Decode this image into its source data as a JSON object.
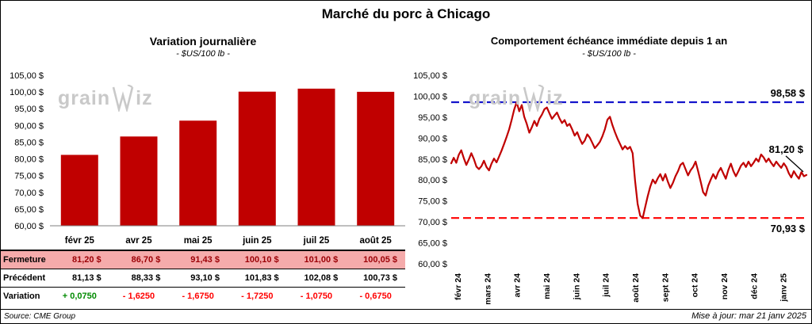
{
  "page": {
    "title": "Marché du porc à Chicago",
    "source": "Source: CME Group",
    "updated": "Mise à jour: mar 21 janv 2025",
    "watermark": {
      "part1": "grain",
      "part2": "iz"
    }
  },
  "colors": {
    "bar": "#c00000",
    "line": "#c00000",
    "high": "#1414cc",
    "low": "#ff0000",
    "close_bg": "#f5abab",
    "close_text": "#9c0006",
    "positive": "#008a00",
    "negative": "#ff0000"
  },
  "table": {
    "col_headers": [
      "févr 25",
      "avr 25",
      "mai 25",
      "juin 25",
      "juil 25",
      "août 25"
    ],
    "rows": [
      {
        "label": "Fermeture",
        "style": "close",
        "values": [
          "81,20 $",
          "86,70 $",
          "91,43 $",
          "100,10 $",
          "101,00 $",
          "100,05 $"
        ]
      },
      {
        "label": "Précédent",
        "style": "prev",
        "values": [
          "81,13 $",
          "88,33 $",
          "93,10 $",
          "101,83 $",
          "102,08 $",
          "100,73 $"
        ]
      },
      {
        "label": "Variation",
        "style": "var",
        "values": [
          "+ 0,0750",
          "- 1,6250",
          "- 1,6750",
          "- 1,7250",
          "- 1,0750",
          "- 0,6750"
        ],
        "value_colors": [
          "positive",
          "negative",
          "negative",
          "negative",
          "negative",
          "negative"
        ]
      }
    ]
  },
  "chart_data": [
    {
      "type": "bar",
      "title": "Variation journalière",
      "subtitle": "- $US/100 lb -",
      "categories": [
        "févr 25",
        "avr 25",
        "mai 25",
        "juin 25",
        "juil 25",
        "août 25"
      ],
      "values": [
        81.2,
        86.7,
        91.43,
        100.1,
        101.0,
        100.05
      ],
      "ylim": [
        60,
        105
      ],
      "yticks": [
        105,
        100,
        95,
        90,
        85,
        80,
        75,
        70,
        65,
        60
      ],
      "ytick_labels": [
        "105,00 $",
        "100,00 $",
        "95,00 $",
        "90,00 $",
        "85,00 $",
        "80,00 $",
        "75,00 $",
        "70,00 $",
        "65,00 $",
        "60,00 $"
      ]
    },
    {
      "type": "line",
      "title": "Comportement échéance immédiate depuis 1 an",
      "subtitle": "- $US/100 lb -",
      "ylim": [
        60,
        105
      ],
      "yticks": [
        105,
        100,
        95,
        90,
        85,
        80,
        75,
        70,
        65,
        60
      ],
      "ytick_labels": [
        "105,00 $",
        "100,00 $",
        "95,00 $",
        "90,00 $",
        "85,00 $",
        "80,00 $",
        "75,00 $",
        "70,00 $",
        "65,00 $",
        "60,00 $"
      ],
      "x_labels": [
        "févr 24",
        "mars 24",
        "avr 24",
        "mai 24",
        "juin 24",
        "juil 24",
        "août 24",
        "sept 24",
        "oct 24",
        "nov 24",
        "déc 24",
        "janv 25"
      ],
      "high_ref": {
        "value": 98.58,
        "label": "98,58 $"
      },
      "low_ref": {
        "value": 70.93,
        "label": "70,93 $"
      },
      "last_value": 81.2,
      "last_value_label": "81,20 $",
      "values": [
        84.0,
        85.3,
        84.1,
        86.0,
        87.1,
        85.2,
        83.6,
        84.9,
        86.4,
        85.0,
        83.2,
        82.6,
        83.3,
        84.6,
        83.1,
        82.3,
        83.9,
        85.1,
        84.2,
        85.6,
        87.0,
        88.6,
        90.3,
        92.1,
        94.4,
        96.8,
        98.58,
        96.4,
        97.9,
        95.1,
        93.4,
        91.3,
        92.6,
        94.1,
        92.9,
        94.6,
        95.6,
        96.9,
        97.3,
        95.9,
        94.6,
        95.4,
        96.1,
        94.7,
        93.6,
        94.3,
        92.9,
        93.4,
        92.1,
        90.6,
        91.4,
        89.9,
        88.6,
        89.4,
        90.9,
        90.1,
        88.9,
        87.6,
        88.3,
        89.1,
        90.4,
        92.1,
        94.4,
        95.1,
        93.1,
        91.4,
        89.9,
        88.6,
        87.3,
        88.1,
        87.4,
        87.9,
        86.4,
        79.8,
        74.3,
        71.5,
        70.93,
        73.6,
        76.1,
        78.4,
        80.1,
        79.2,
        80.4,
        81.4,
        79.9,
        81.4,
        79.6,
        78.1,
        79.3,
        80.9,
        82.1,
        83.6,
        84.1,
        82.6,
        81.1,
        82.3,
        83.1,
        84.4,
        82.1,
        79.6,
        77.1,
        76.3,
        78.6,
        80.1,
        81.4,
        80.3,
        81.9,
        82.9,
        81.6,
        80.3,
        82.4,
        83.9,
        82.1,
        80.9,
        82.1,
        83.4,
        84.1,
        83.1,
        84.4,
        83.3,
        84.1,
        85.1,
        84.4,
        86.1,
        85.4,
        84.3,
        85.1,
        84.1,
        83.3,
        84.4,
        83.6,
        82.9,
        84.0,
        83.1,
        81.6,
        80.6,
        82.1,
        81.1,
        80.3,
        81.9,
        80.9,
        81.2
      ]
    }
  ]
}
